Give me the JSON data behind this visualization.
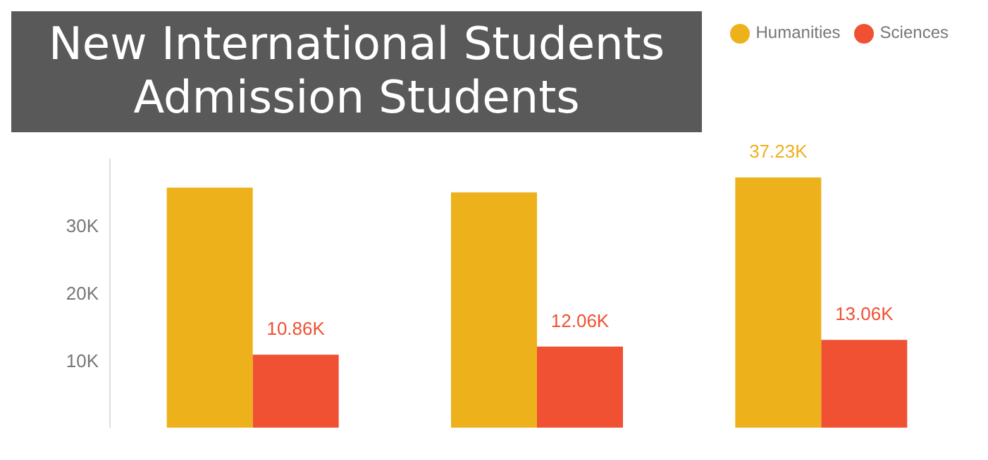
{
  "chart_data": {
    "type": "bar",
    "title": "New International Students\nAdmission Students",
    "categories": [
      null,
      null,
      null
    ],
    "series": [
      {
        "name": "Humanities",
        "color": "#edb11c",
        "values": [
          35700,
          35000,
          37230
        ],
        "value_labels": [
          null,
          null,
          "37.23K"
        ]
      },
      {
        "name": "Sciences",
        "color": "#f05133",
        "values": [
          10860,
          12060,
          13060
        ],
        "value_labels": [
          "10.86K",
          "12.06K",
          "13.06K"
        ]
      }
    ],
    "ylim": [
      0,
      40000
    ],
    "yticks": [
      {
        "value": 10000,
        "label": "10K"
      },
      {
        "value": 20000,
        "label": "20K"
      },
      {
        "value": 30000,
        "label": "30K"
      }
    ],
    "grid": false,
    "legend": "top right"
  }
}
